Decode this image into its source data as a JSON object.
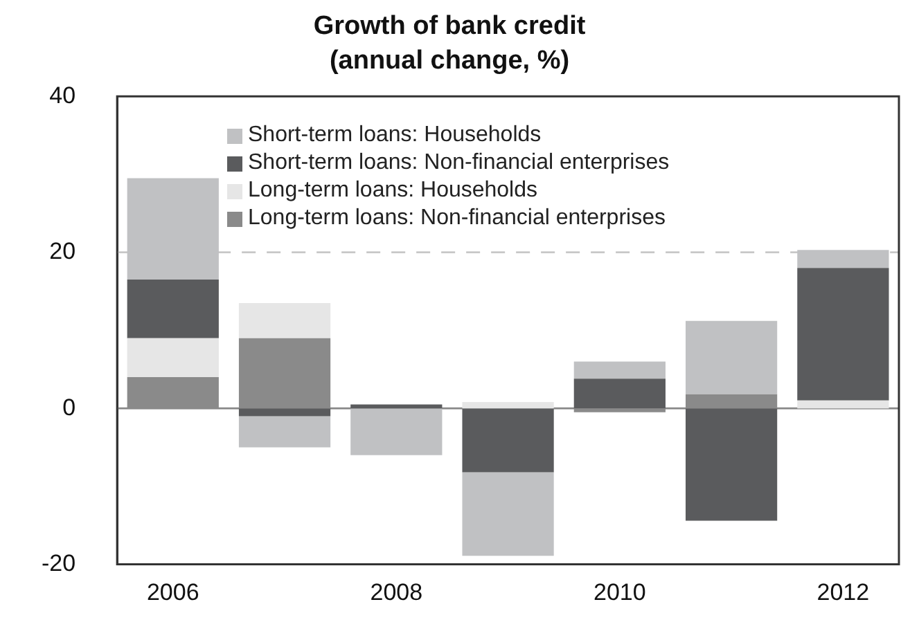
{
  "chart_data": {
    "type": "bar",
    "title": "Growth of bank credit",
    "subtitle": "(annual change, %)",
    "categories": [
      "2006",
      null,
      "2008",
      null,
      "2010",
      null,
      "2012"
    ],
    "stacked": true,
    "series": [
      {
        "name": "Long-term loans: Non-financial enterprises",
        "color": "#8a8a8a",
        "values": [
          4,
          9,
          null,
          null,
          -0.5,
          1.8,
          null
        ]
      },
      {
        "name": "Long-term loans: Households",
        "color": "#e6e6e6",
        "values": [
          5,
          4.5,
          null,
          0.8,
          null,
          null,
          1
        ]
      },
      {
        "name": "Short-term loans: Non-financial enterprises",
        "color": "#5a5b5d",
        "values": [
          7.5,
          -1,
          0.5,
          -8.2,
          3.8,
          -14.4,
          17
        ]
      },
      {
        "name": "Short-term loans: Households",
        "color": "#c0c1c3",
        "values": [
          13,
          -4,
          -6,
          -10.7,
          2.2,
          9.4,
          2.3
        ]
      }
    ],
    "ylim": [
      -20,
      40
    ],
    "yticks": [
      -20,
      0,
      20,
      40
    ],
    "ref_lines": [
      {
        "axis": "y",
        "value": 20,
        "color": "#c8c8c8",
        "line_style": "dashed"
      }
    ],
    "legend": "top left"
  }
}
